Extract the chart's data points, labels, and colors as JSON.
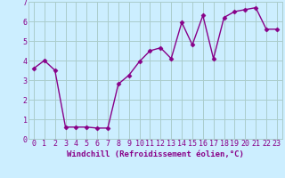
{
  "x": [
    0,
    1,
    2,
    3,
    4,
    5,
    6,
    7,
    8,
    9,
    10,
    11,
    12,
    13,
    14,
    15,
    16,
    17,
    18,
    19,
    20,
    21,
    22,
    23
  ],
  "y": [
    3.6,
    4.0,
    3.5,
    0.6,
    0.6,
    0.6,
    0.55,
    0.55,
    2.8,
    3.25,
    3.95,
    4.5,
    4.65,
    4.1,
    5.95,
    4.8,
    6.3,
    4.1,
    6.2,
    6.5,
    6.6,
    6.7,
    5.6,
    5.6
  ],
  "line_color": "#880088",
  "marker": "D",
  "marker_size": 2.5,
  "line_width": 1.0,
  "bg_color": "#cceeff",
  "grid_color": "#aacccc",
  "xlabel": "Windchill (Refroidissement éolien,°C)",
  "xlabel_color": "#880088",
  "xlabel_fontsize": 6.5,
  "xtick_labels": [
    "0",
    "1",
    "2",
    "3",
    "4",
    "5",
    "6",
    "7",
    "8",
    "9",
    "10",
    "11",
    "12",
    "13",
    "14",
    "15",
    "16",
    "17",
    "18",
    "19",
    "20",
    "21",
    "22",
    "23"
  ],
  "ylim": [
    0,
    7
  ],
  "yticks": [
    0,
    1,
    2,
    3,
    4,
    5,
    6,
    7
  ],
  "xlim": [
    -0.5,
    23.5
  ],
  "tick_fontsize": 6.0,
  "tick_color": "#880088"
}
